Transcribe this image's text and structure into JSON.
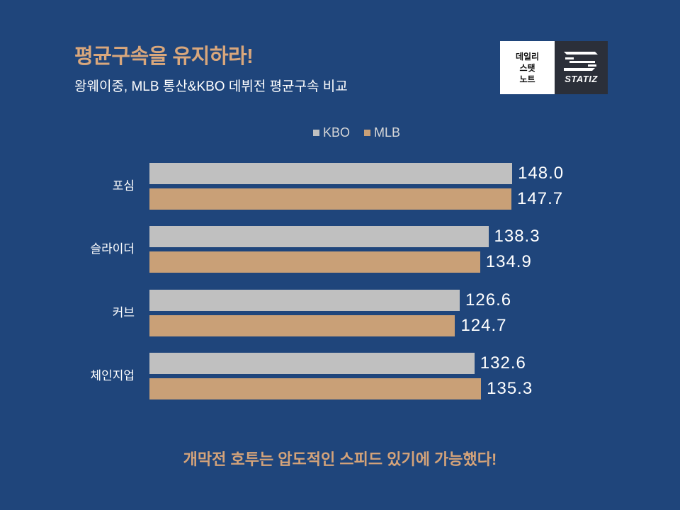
{
  "header": {
    "title": "평균구속을 유지하라!",
    "subtitle": "왕웨이중, MLB 통산&KBO 데뷔전 평균구속 비교"
  },
  "logo": {
    "lines": [
      "데일리",
      "스탯",
      "노트"
    ],
    "brand": "STATIZ"
  },
  "footer": {
    "caption": "개막전 호투는 압도적인 스피드 있기에 가능했다!"
  },
  "colors": {
    "background": "#1F457B",
    "accent": "#D9A77C",
    "kbo": "#C0C0C0",
    "mlb": "#C9A077"
  },
  "chart_data": {
    "type": "bar",
    "orientation": "horizontal",
    "categories": [
      "포심",
      "슬라이더",
      "커브",
      "체인지업"
    ],
    "series": [
      {
        "name": "KBO",
        "values": [
          148.0,
          138.3,
          126.6,
          132.6
        ]
      },
      {
        "name": "MLB",
        "values": [
          147.7,
          134.9,
          124.7,
          135.3
        ]
      }
    ],
    "xlim": [
      0,
      150
    ],
    "grid": false,
    "legend": "top-center",
    "data_labels": true
  }
}
